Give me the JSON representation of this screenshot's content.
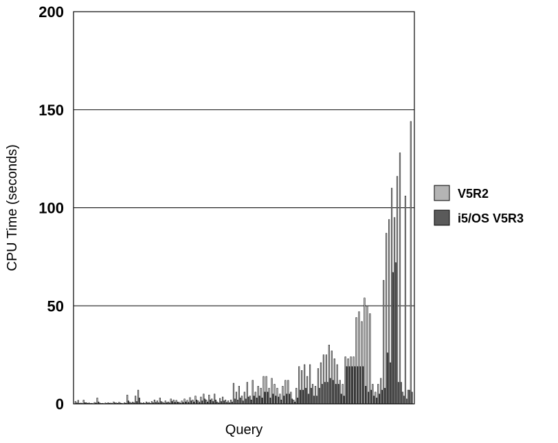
{
  "chart_data": {
    "type": "bar",
    "xlabel": "Query",
    "ylabel": "CPU Time (seconds)",
    "ylim": [
      0,
      200
    ],
    "yticks": [
      "0",
      "50",
      "100",
      "150",
      "200"
    ],
    "grid": true,
    "legend_position": "right",
    "series": [
      {
        "name": "V5R2",
        "color": "#b4b4b4"
      },
      {
        "name": "i5/OS V5R3",
        "color": "#5a5a5a"
      }
    ],
    "pairs": [
      [
        1.2,
        0.5
      ],
      [
        1.8,
        0.3
      ],
      [
        0.4,
        0.2
      ],
      [
        1.9,
        0.6
      ],
      [
        0.6,
        0.3
      ],
      [
        0.5,
        0.2
      ],
      [
        0.3,
        0.1
      ],
      [
        0.7,
        0.4
      ],
      [
        3.0,
        1.0
      ],
      [
        0.4,
        0.2
      ],
      [
        0.3,
        0.1
      ],
      [
        0.5,
        0.2
      ],
      [
        0.6,
        0.3
      ],
      [
        0.4,
        0.2
      ],
      [
        1.0,
        0.5
      ],
      [
        0.5,
        0.3
      ],
      [
        0.8,
        0.4
      ],
      [
        0.3,
        0.1
      ],
      [
        0.6,
        0.3
      ],
      [
        4.5,
        1.5
      ],
      [
        0.8,
        0.4
      ],
      [
        0.9,
        0.5
      ],
      [
        4.0,
        1.2
      ],
      [
        7.0,
        3.0
      ],
      [
        0.5,
        0.3
      ],
      [
        0.6,
        0.2
      ],
      [
        1.0,
        0.5
      ],
      [
        0.7,
        0.3
      ],
      [
        1.2,
        0.6
      ],
      [
        2.0,
        0.8
      ],
      [
        1.5,
        0.6
      ],
      [
        3.0,
        1.2
      ],
      [
        0.8,
        0.4
      ],
      [
        1.5,
        0.6
      ],
      [
        1.0,
        0.5
      ],
      [
        2.5,
        1.2
      ],
      [
        2.0,
        0.8
      ],
      [
        1.8,
        0.9
      ],
      [
        0.8,
        0.4
      ],
      [
        1.5,
        0.7
      ],
      [
        2.5,
        1.0
      ],
      [
        1.8,
        0.8
      ],
      [
        3.2,
        1.5
      ],
      [
        2.0,
        1.0
      ],
      [
        4.0,
        2.0
      ],
      [
        1.5,
        0.8
      ],
      [
        3.5,
        1.5
      ],
      [
        5.0,
        2.5
      ],
      [
        2.0,
        1.0
      ],
      [
        4.5,
        2.0
      ],
      [
        2.5,
        1.2
      ],
      [
        5.0,
        2.0
      ],
      [
        1.0,
        0.5
      ],
      [
        2.8,
        1.2
      ],
      [
        3.5,
        1.5
      ],
      [
        2.0,
        0.8
      ],
      [
        1.5,
        0.6
      ],
      [
        2.0,
        1.0
      ],
      [
        10.5,
        2.5
      ],
      [
        6.0,
        2.0
      ],
      [
        9.0,
        3.0
      ],
      [
        4.0,
        1.5
      ],
      [
        6.0,
        2.5
      ],
      [
        11.0,
        3.5
      ],
      [
        4.0,
        2.0
      ],
      [
        12.0,
        4.0
      ],
      [
        6.0,
        3.0
      ],
      [
        9.0,
        4.0
      ],
      [
        8.0,
        3.0
      ],
      [
        14.0,
        6.0
      ],
      [
        14.0,
        6.0
      ],
      [
        8.0,
        3.0
      ],
      [
        13.0,
        5.0
      ],
      [
        10.0,
        4.0
      ],
      [
        8.0,
        3.5
      ],
      [
        5.0,
        2.0
      ],
      [
        9.0,
        4.0
      ],
      [
        12.0,
        5.0
      ],
      [
        12.0,
        5.0
      ],
      [
        6.0,
        2.5
      ],
      [
        2.0,
        1.0
      ],
      [
        8.0,
        3.0
      ],
      [
        19.0,
        7.0
      ],
      [
        17.0,
        7.0
      ],
      [
        20.0,
        8.0
      ],
      [
        14.0,
        5.0
      ],
      [
        20.0,
        8.0
      ],
      [
        10.0,
        4.0
      ],
      [
        9.0,
        4.0
      ],
      [
        18.0,
        8.0
      ],
      [
        21.0,
        10.0
      ],
      [
        25.0,
        11.0
      ],
      [
        25.0,
        11.0
      ],
      [
        30.0,
        13.0
      ],
      [
        27.0,
        12.0
      ],
      [
        23.0,
        10.0
      ],
      [
        20.0,
        10.0
      ],
      [
        12.0,
        5.0
      ],
      [
        10.0,
        4.0
      ],
      [
        24.0,
        19.0
      ],
      [
        23.0,
        19.0
      ],
      [
        24.0,
        19.0
      ],
      [
        24.0,
        19.0
      ],
      [
        44.0,
        19.0
      ],
      [
        47.0,
        19.0
      ],
      [
        42.0,
        19.0
      ],
      [
        54.0,
        9.0
      ],
      [
        50.0,
        6.0
      ],
      [
        46.0,
        7.0
      ],
      [
        10.0,
        4.0
      ],
      [
        6.0,
        3.0
      ],
      [
        10.0,
        5.0
      ],
      [
        13.0,
        7.0
      ],
      [
        63.0,
        8.0
      ],
      [
        87.0,
        26.0
      ],
      [
        94.0,
        21.0
      ],
      [
        110.0,
        67.0
      ],
      [
        95.0,
        72.0
      ],
      [
        116.0,
        11.0
      ],
      [
        128.0,
        11.0
      ],
      [
        6.0,
        4.0
      ],
      [
        106.0,
        2.5
      ],
      [
        7.0,
        7.0
      ],
      [
        144.0,
        6.0
      ]
    ]
  }
}
